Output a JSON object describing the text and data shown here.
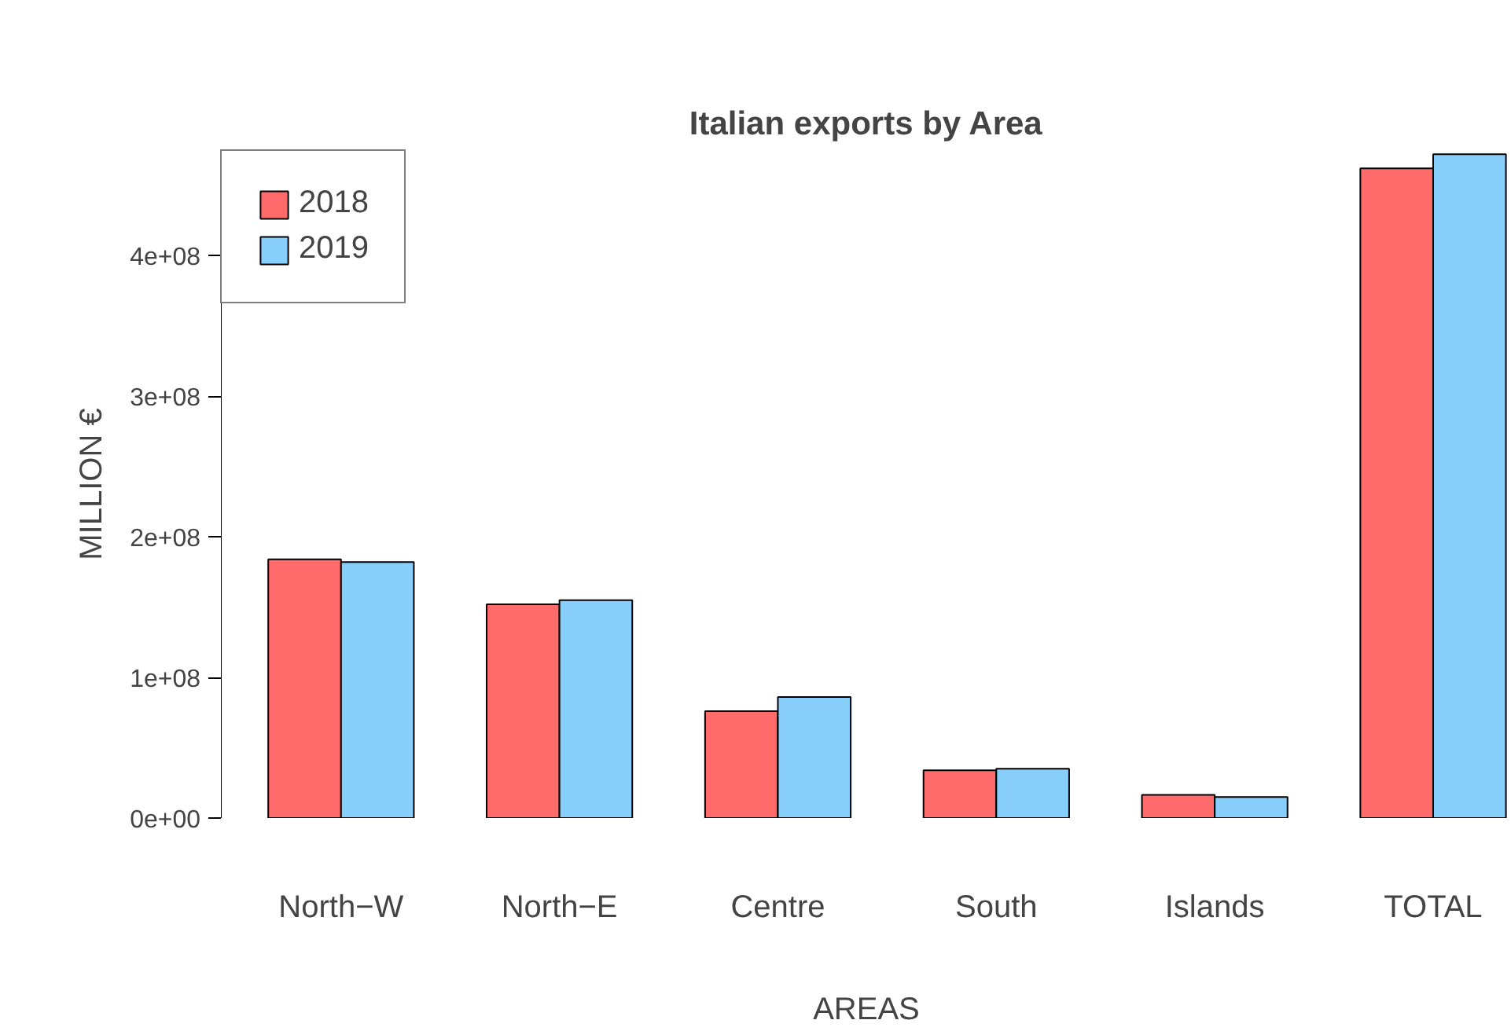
{
  "chart_data": {
    "type": "bar",
    "title": "Italian exports by Area",
    "xlabel": "AREAS",
    "ylabel": "MILLION €",
    "categories": [
      "North−W",
      "North−E",
      "Centre",
      "South",
      "Islands",
      "TOTAL"
    ],
    "series": [
      {
        "name": "2018",
        "color": "#ff6a6a",
        "values": [
          184000000,
          152000000,
          76000000,
          34000000,
          16500000,
          462000000
        ]
      },
      {
        "name": "2019",
        "color": "#87cefa",
        "values": [
          182000000,
          155000000,
          86000000,
          35000000,
          15000000,
          472000000
        ]
      }
    ],
    "ylim": [
      0,
      475000000
    ],
    "yticks": [
      {
        "value": 0,
        "label": "0e+00"
      },
      {
        "value": 100000000,
        "label": "1e+08"
      },
      {
        "value": 200000000,
        "label": "2e+08"
      },
      {
        "value": 300000000,
        "label": "3e+08"
      },
      {
        "value": 400000000,
        "label": "4e+08"
      }
    ],
    "grid": false,
    "legend": "top left"
  }
}
